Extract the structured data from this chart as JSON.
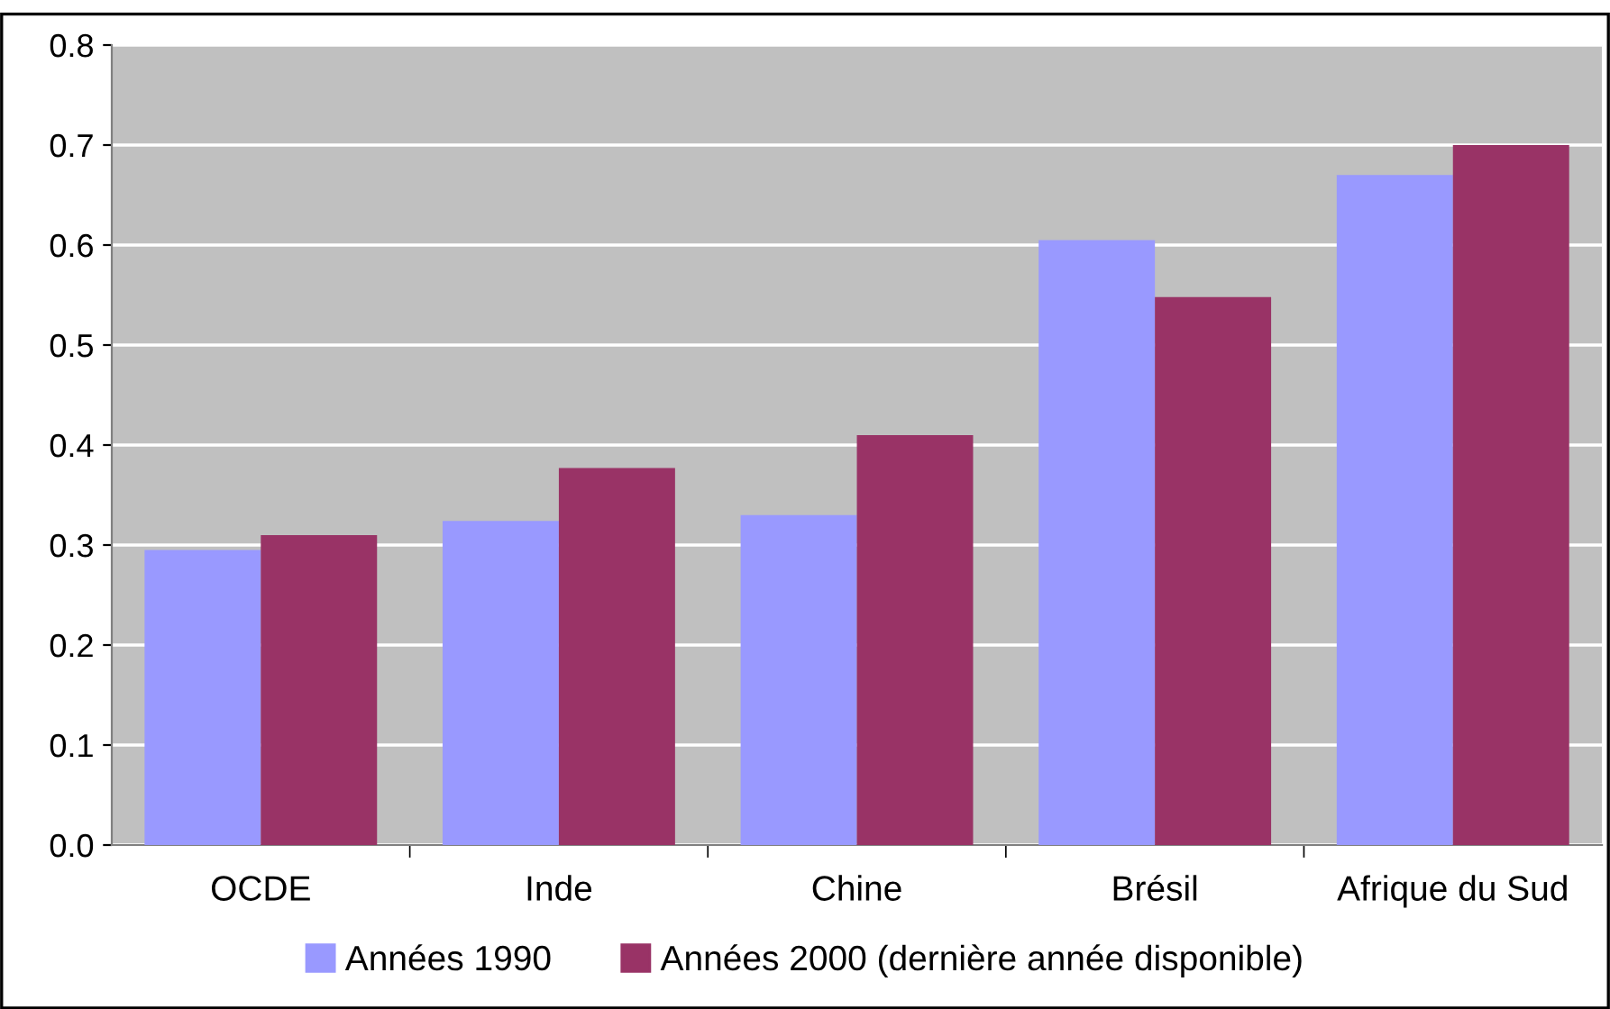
{
  "chart_data": {
    "type": "bar",
    "categories": [
      "OCDE",
      "Inde",
      "Chine",
      "Brésil",
      "Afrique du Sud"
    ],
    "series": [
      {
        "name": "Années 1990",
        "color": "#9999ff",
        "values": [
          0.295,
          0.324,
          0.33,
          0.605,
          0.67
        ]
      },
      {
        "name": "Années 2000 (dernière année disponible)",
        "color": "#993366",
        "values": [
          0.31,
          0.377,
          0.41,
          0.548,
          0.7
        ]
      }
    ],
    "ylim": [
      0,
      0.8
    ],
    "yticks": [
      {
        "value": 0,
        "label": "0.0"
      },
      {
        "value": 0.1,
        "label": "0.1"
      },
      {
        "value": 0.2,
        "label": "0.2"
      },
      {
        "value": 0.3,
        "label": "0.3"
      },
      {
        "value": 0.4,
        "label": "0.4"
      },
      {
        "value": 0.5,
        "label": "0.5"
      },
      {
        "value": 0.6,
        "label": "0.6"
      },
      {
        "value": 0.7,
        "label": "0.7"
      },
      {
        "value": 0.8,
        "label": "0.8"
      }
    ],
    "grid": "y",
    "legend": "bottom"
  }
}
